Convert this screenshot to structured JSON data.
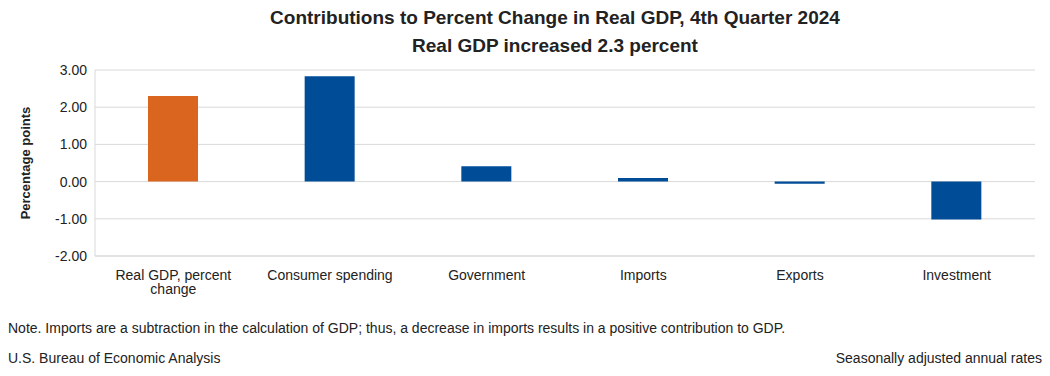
{
  "chart_data": {
    "type": "bar",
    "title": "Contributions to Percent Change in Real GDP, 4th Quarter 2024",
    "subtitle": "Real GDP increased 2.3 percent",
    "ylabel": "Percentage points",
    "categories": [
      "Real GDP, percent change",
      "Consumer spending",
      "Government",
      "Imports",
      "Exports",
      "Investment"
    ],
    "values": [
      2.3,
      2.83,
      0.41,
      0.1,
      -0.06,
      -1.02
    ],
    "colors": [
      "#d9651e",
      "#004c97",
      "#004c97",
      "#004c97",
      "#004c97",
      "#004c97"
    ],
    "ylim": [
      -2,
      3
    ],
    "yticks": [
      {
        "value": -2,
        "label": "-2.00"
      },
      {
        "value": -1,
        "label": "-1.00"
      },
      {
        "value": 0,
        "label": "0.00"
      },
      {
        "value": 1,
        "label": "1.00"
      },
      {
        "value": 2,
        "label": "2.00"
      },
      {
        "value": 3,
        "label": "3.00"
      }
    ],
    "grid": true,
    "note": "Note. Imports are a subtraction in the calculation of GDP; thus, a decrease in imports results in a positive contribution to GDP.",
    "source": "U.S. Bureau of Economic Analysis",
    "footnote": "Seasonally adjusted annual rates"
  }
}
